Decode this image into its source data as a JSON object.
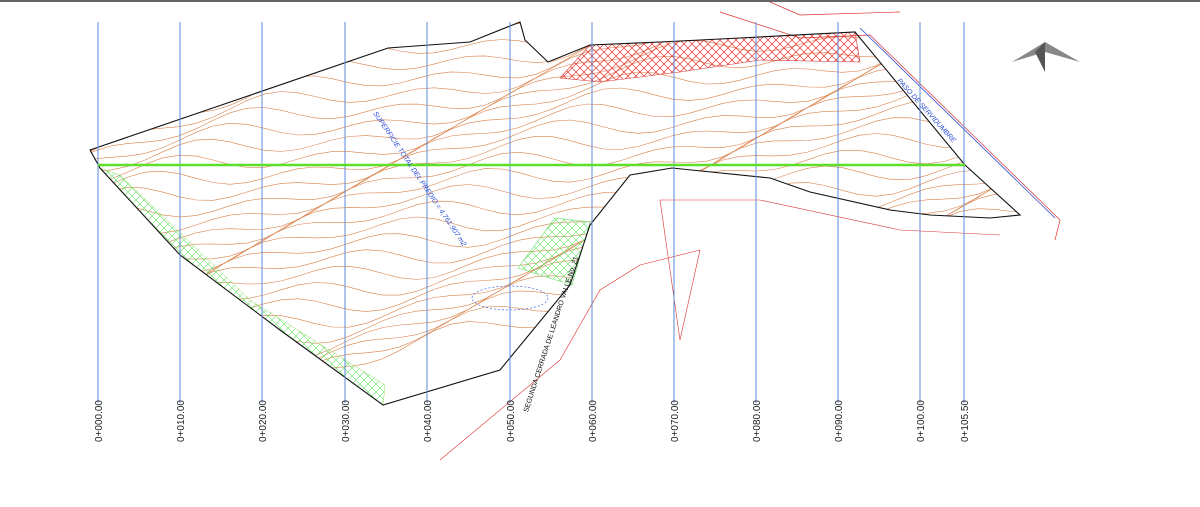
{
  "stations": [
    "0+000.00",
    "0+010.00",
    "0+020.00",
    "0+030.00",
    "0+040.00",
    "0+050.00",
    "0+060.00",
    "0+070.00",
    "0+080.00",
    "0+090.00",
    "0+100.00",
    "0+105.50"
  ],
  "labels": {
    "area": "SUPERFICIE TOTAL DEL PREDIO = 4,761.907 m2",
    "street": "SEGUNDA CERRADA DE LEANDRO VALLE No. 21",
    "easement": "PASO DE SERVIDUMBRE"
  }
}
